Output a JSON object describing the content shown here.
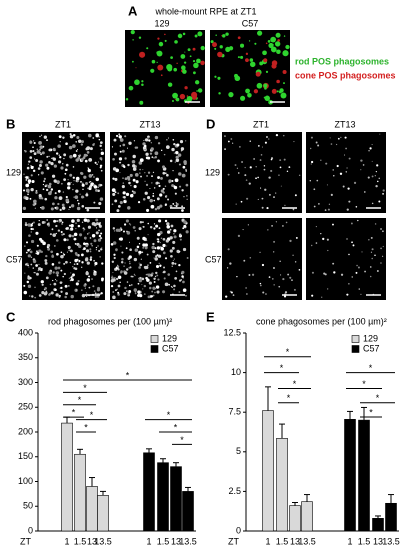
{
  "panels": {
    "a": {
      "label": "A",
      "title": "whole-mount RPE at ZT1",
      "columns": [
        "129",
        "C57"
      ],
      "legend": [
        "rod POS phagosomes",
        "cone POS phagosomes"
      ]
    },
    "b": {
      "label": "B",
      "columns": [
        "ZT1",
        "ZT13"
      ],
      "rows": [
        "129",
        "C57"
      ]
    },
    "d": {
      "label": "D",
      "columns": [
        "ZT1",
        "ZT13"
      ],
      "rows": [
        "129",
        "C57"
      ]
    }
  },
  "chart_data": [
    {
      "type": "bar",
      "label": "C",
      "title": "rod phagosomes per (100 µm)²",
      "x_label": "ZT",
      "annotation": "*",
      "categories": [
        "1",
        "1.5",
        "13",
        "13.5"
      ],
      "series": [
        {
          "name": "129",
          "color": "#d9d9d9",
          "values": [
            218,
            155,
            90,
            72
          ],
          "errors": [
            12,
            10,
            18,
            8
          ]
        },
        {
          "name": "C57",
          "color": "#000000",
          "values": [
            158,
            138,
            130,
            80
          ],
          "errors": [
            8,
            8,
            8,
            8
          ]
        }
      ],
      "ylim": [
        0,
        400
      ],
      "yticks": [
        0,
        50,
        100,
        150,
        200,
        250,
        300,
        350,
        400
      ]
    },
    {
      "type": "bar",
      "label": "E",
      "title": "cone phagosomes per (100 µm)²",
      "x_label": "ZT",
      "annotation": "*",
      "categories": [
        "1",
        "1.5",
        "13",
        "13.5"
      ],
      "series": [
        {
          "name": "129",
          "color": "#d9d9d9",
          "values": [
            7.6,
            5.85,
            1.6,
            1.85
          ],
          "errors": [
            1.5,
            0.9,
            0.2,
            0.45
          ]
        },
        {
          "name": "C57",
          "color": "#000000",
          "values": [
            7.05,
            7.0,
            0.8,
            1.75
          ],
          "errors": [
            0.5,
            0.8,
            0.15,
            0.55
          ]
        }
      ],
      "ylim": [
        0,
        12.5
      ],
      "yticks": [
        0,
        2.5,
        5,
        7.5,
        10,
        12.5
      ]
    }
  ]
}
